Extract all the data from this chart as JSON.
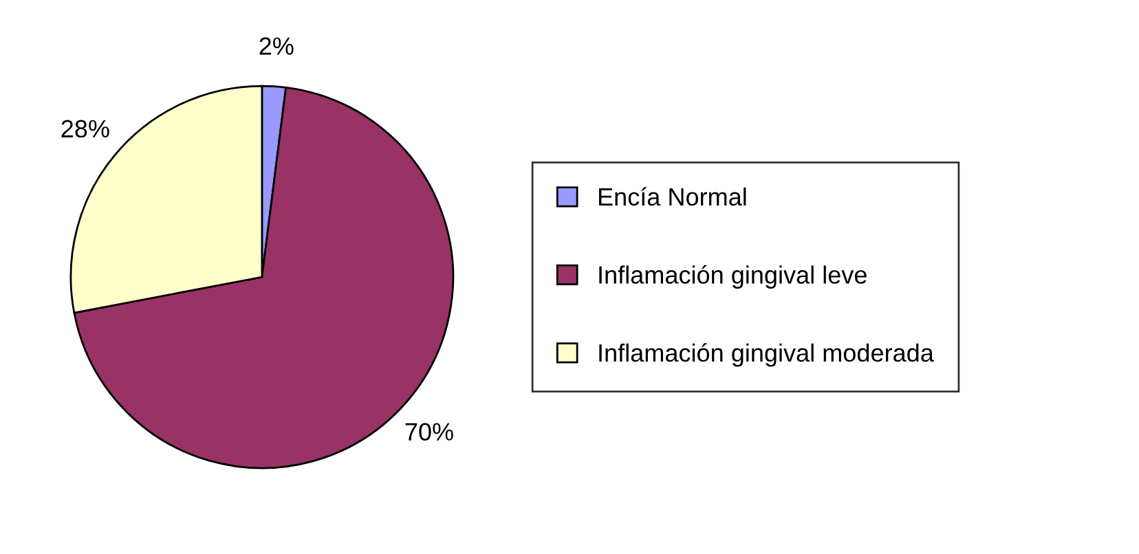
{
  "chart_data": {
    "type": "pie",
    "categories": [
      "Encía Normal",
      "Inflamación gingival leve",
      "Inflamación gingival moderada"
    ],
    "values": [
      2,
      70,
      28
    ],
    "colors": [
      "#9999ff",
      "#993366",
      "#ffffcc"
    ],
    "value_labels": [
      "2%",
      "70%",
      "28%"
    ],
    "legend": "right"
  }
}
